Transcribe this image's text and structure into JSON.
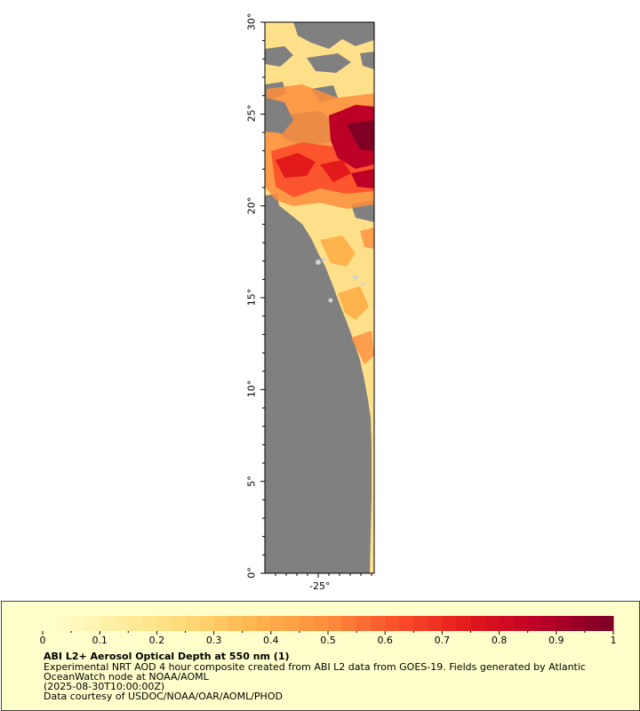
{
  "map": {
    "lat_labels": [
      "30°",
      "25°",
      "20°",
      "15°",
      "10°",
      "5°",
      "0°"
    ],
    "lon_labels": [
      "-25°"
    ],
    "colors": {
      "land": "#808080",
      "no_data": "#d3d3d3",
      "frame": "#000000"
    }
  },
  "colorbar": {
    "min": 0,
    "max": 1,
    "tick_labels": [
      "0",
      "0.1",
      "0.2",
      "0.3",
      "0.4",
      "0.5",
      "0.6",
      "0.7",
      "0.8",
      "0.9",
      "1"
    ],
    "palette": [
      "#ffffcc",
      "#ffeda0",
      "#fed976",
      "#feb24c",
      "#fd8d3c",
      "#fc4e2a",
      "#e31a1c",
      "#bd0026",
      "#800026"
    ]
  },
  "legend": {
    "title": "ABI L2+ Aerosol Optical Depth at 550 nm (1)",
    "line1": "Experimental NRT AOD 4 hour composite created from ABI L2 data from GOES-19. Fields generated by Atlantic",
    "line2": "OceanWatch node at NOAA/AOML",
    "line3": "(2025-08-30T10:00:00Z)",
    "line4": "Data courtesy of USDOC/NOAA/OAR/AOML/PHOD"
  }
}
